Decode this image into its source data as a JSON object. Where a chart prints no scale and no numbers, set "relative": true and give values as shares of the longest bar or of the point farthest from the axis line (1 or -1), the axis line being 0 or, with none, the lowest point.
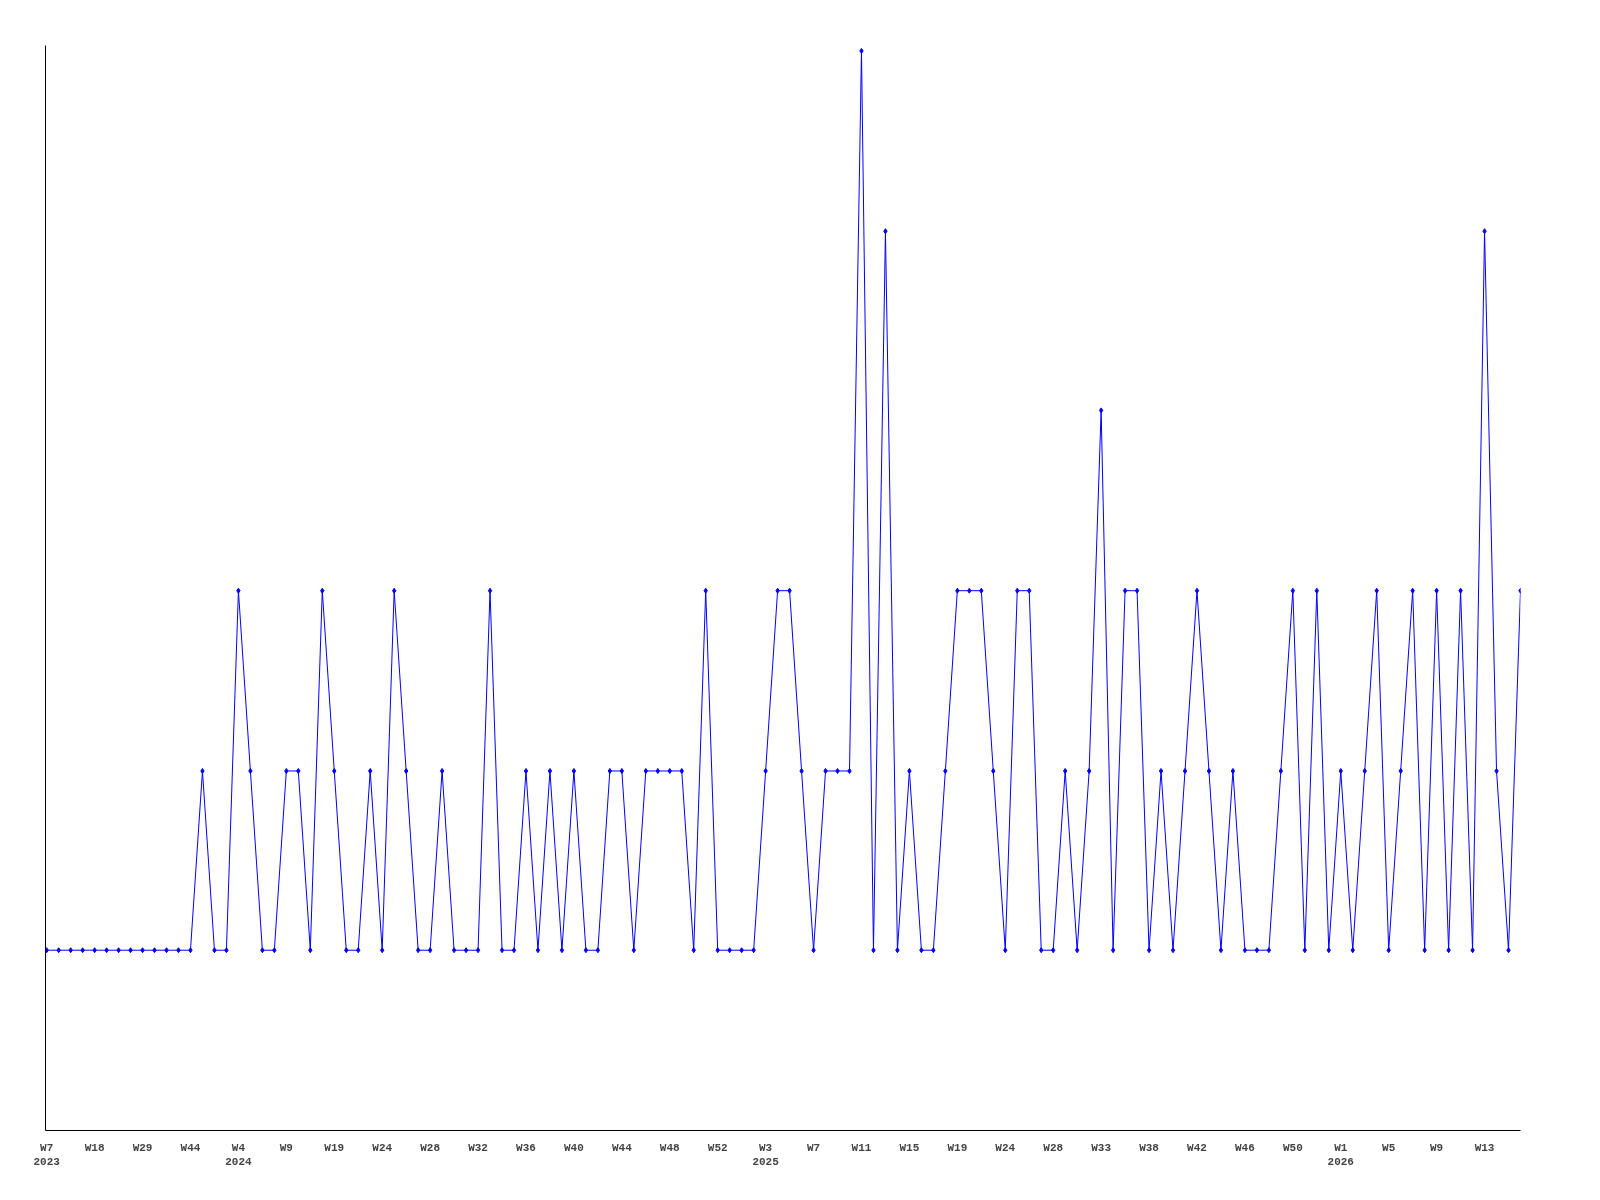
{
  "chart_data": {
    "type": "line",
    "relative": true,
    "color": "#0000ff",
    "marker": "diamond",
    "grid": false,
    "categories": [
      "W7\n2023",
      null,
      null,
      null,
      "W18",
      null,
      null,
      null,
      "W29",
      null,
      null,
      null,
      "W44",
      null,
      null,
      null,
      "W4\n2024",
      null,
      null,
      null,
      "W9",
      null,
      null,
      null,
      "W19",
      null,
      null,
      null,
      "W24",
      null,
      null,
      null,
      "W28",
      null,
      null,
      null,
      "W32",
      null,
      null,
      null,
      "W36",
      null,
      null,
      null,
      "W40",
      null,
      null,
      null,
      "W44",
      null,
      null,
      null,
      "W48",
      null,
      null,
      null,
      "W52",
      null,
      null,
      null,
      "W3\n2025",
      null,
      null,
      null,
      "W7",
      null,
      null,
      null,
      "W11",
      null,
      null,
      null,
      "W15",
      null,
      null,
      null,
      "W19",
      null,
      null,
      null,
      "W24",
      null,
      null,
      null,
      "W28",
      null,
      null,
      null,
      "W33",
      null,
      null,
      null,
      "W38",
      null,
      null,
      null,
      "W42",
      null,
      null,
      null,
      "W46",
      null,
      null,
      null,
      "W50",
      null,
      null,
      null,
      "W1\n2026",
      null,
      null,
      null,
      "W5",
      null,
      null,
      null,
      "W9",
      null,
      null,
      null,
      "W13",
      null,
      null,
      null
    ],
    "values": [
      0.167,
      0.167,
      0.167,
      0.167,
      0.167,
      0.167,
      0.167,
      0.167,
      0.167,
      0.167,
      0.167,
      0.167,
      0.167,
      0.333,
      0.167,
      0.167,
      0.5,
      0.333,
      0.167,
      0.167,
      0.333,
      0.333,
      0.167,
      0.5,
      0.333,
      0.167,
      0.167,
      0.333,
      0.167,
      0.5,
      0.333,
      0.167,
      0.167,
      0.333,
      0.167,
      0.167,
      0.167,
      0.5,
      0.167,
      0.167,
      0.333,
      0.167,
      0.333,
      0.167,
      0.333,
      0.167,
      0.167,
      0.333,
      0.333,
      0.167,
      0.333,
      0.333,
      0.333,
      0.333,
      0.167,
      0.5,
      0.167,
      0.167,
      0.167,
      0.167,
      0.333,
      0.5,
      0.5,
      0.333,
      0.167,
      0.333,
      0.333,
      0.333,
      1,
      0.167,
      0.833,
      0.167,
      0.333,
      0.167,
      0.167,
      0.333,
      0.5,
      0.5,
      0.5,
      0.333,
      0.167,
      0.5,
      0.5,
      0.167,
      0.167,
      0.333,
      0.167,
      0.333,
      0.667,
      0.167,
      0.5,
      0.5,
      0.167,
      0.333,
      0.167,
      0.333,
      0.5,
      0.333,
      0.167,
      0.333,
      0.167,
      0.167,
      0.167,
      0.333,
      0.5,
      0.167,
      0.5,
      0.167,
      0.333,
      0.167,
      0.333,
      0.5,
      0.167,
      0.333,
      0.5,
      0.167,
      0.5,
      0.167,
      0.5,
      0.167,
      0.833,
      0.333,
      0.167,
      0.5
    ]
  }
}
